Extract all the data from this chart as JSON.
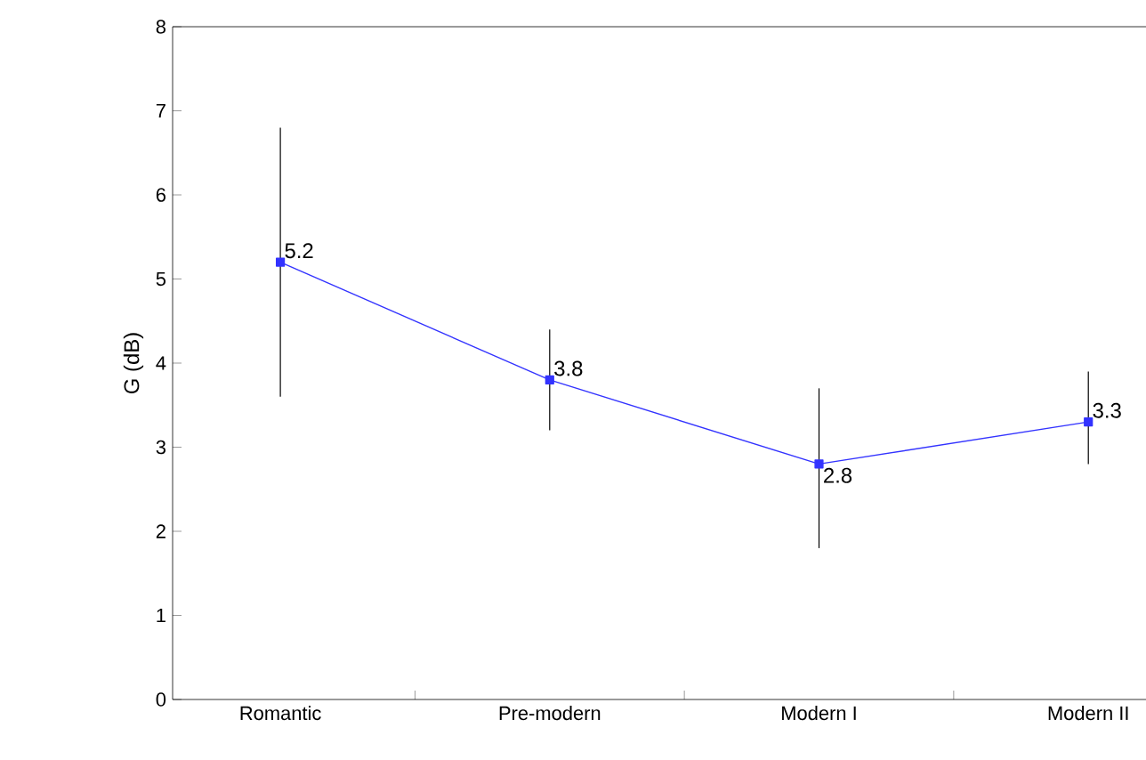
{
  "chart_data": {
    "type": "line",
    "ylabel": "G (dB)",
    "categories": [
      "Romantic",
      "Pre-modern",
      "Modern I",
      "Modern II"
    ],
    "series": [
      {
        "color": "#3333ff",
        "values": [
          5.2,
          3.8,
          2.8,
          3.3
        ],
        "errors": [
          [
            3.6,
            6.8
          ],
          [
            3.2,
            4.4
          ],
          [
            1.8,
            3.7
          ],
          [
            2.8,
            3.9
          ]
        ]
      }
    ],
    "ylim": [
      0,
      8
    ],
    "yticks": [
      0,
      1,
      2,
      3,
      4,
      5,
      6,
      7,
      8
    ],
    "marker": "square",
    "line_style": "solid",
    "data_labels": true
  }
}
